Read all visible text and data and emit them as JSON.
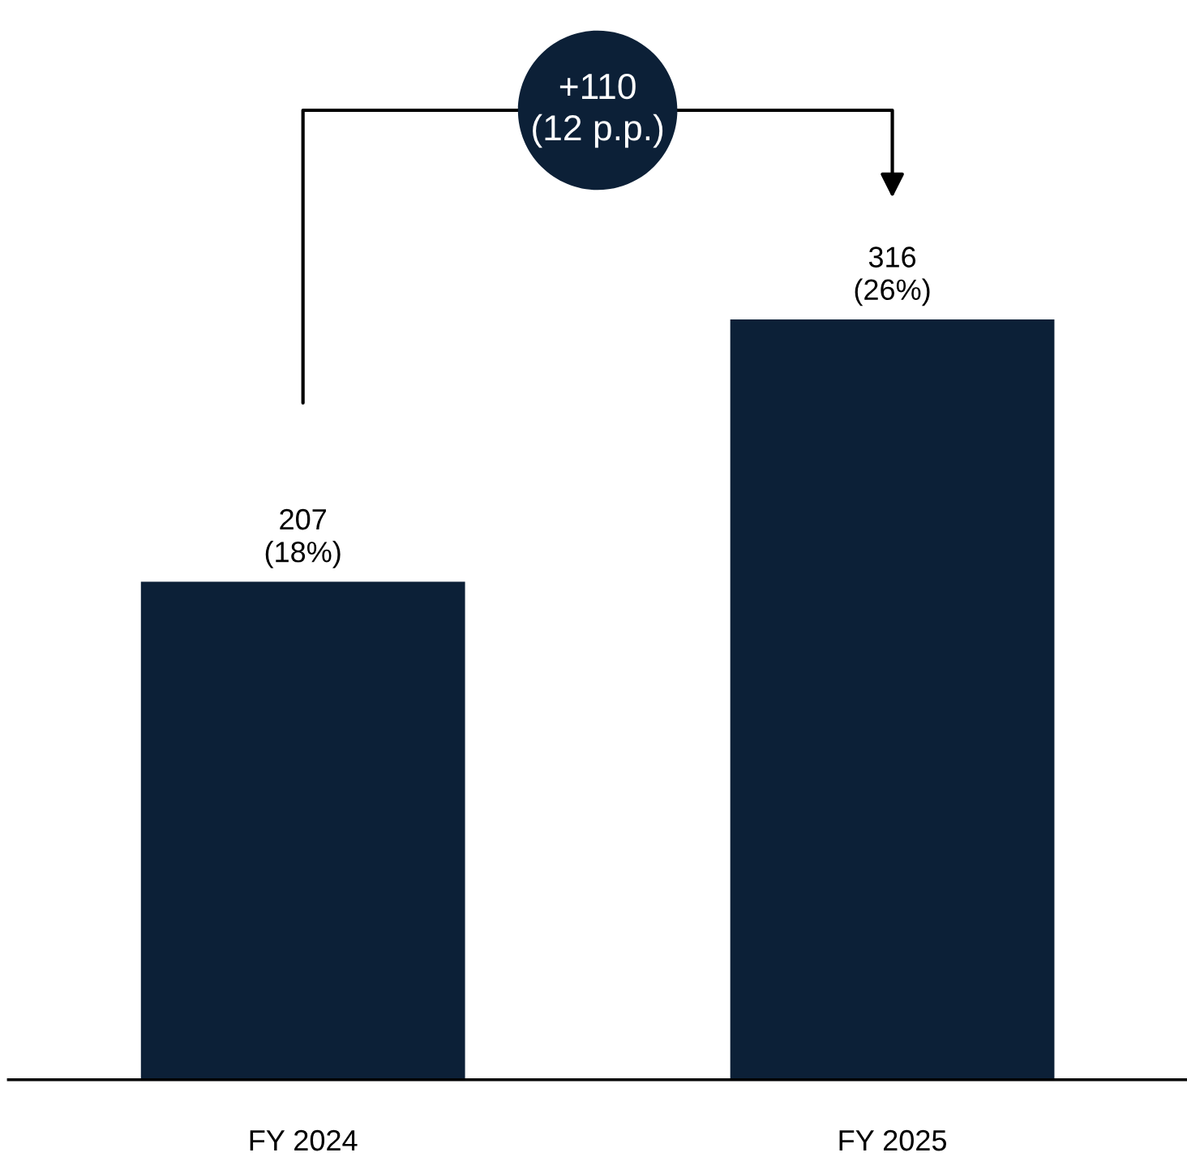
{
  "chart_data": {
    "type": "bar",
    "categories": [
      "FY 2024",
      "FY 2025"
    ],
    "values": [
      207,
      316
    ],
    "value_labels": [
      "207\n(18%)",
      "316\n(26%)"
    ],
    "color": "#0c2037",
    "annotations": [
      "+110\n(12 p.p.)"
    ],
    "grid": false,
    "legend": false
  }
}
